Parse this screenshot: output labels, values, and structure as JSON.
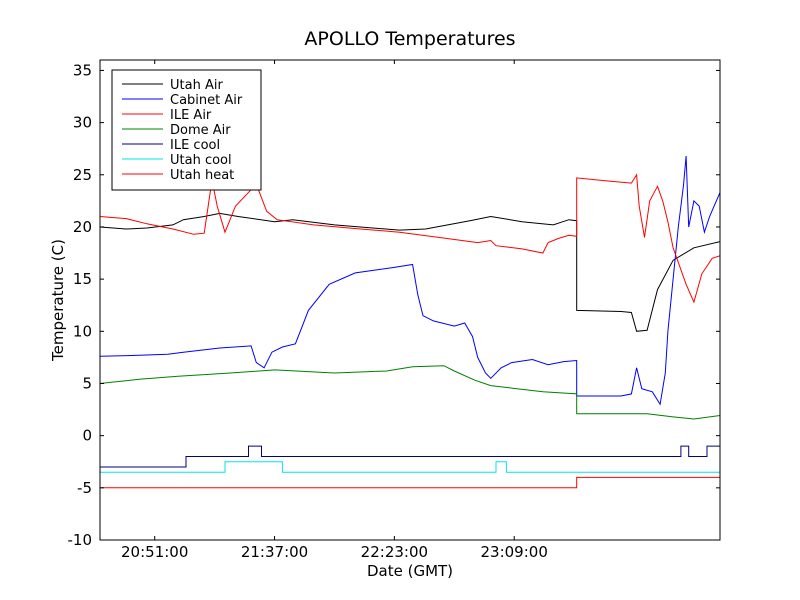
{
  "chart_data": {
    "type": "line",
    "title": "APOLLO Temperatures",
    "xlabel": "Date (GMT)",
    "ylabel": "Temperature (C)",
    "ylim": [
      -10,
      36
    ],
    "xlim_minutes": [
      1230,
      1468
    ],
    "x_ticks": [
      {
        "label": "20:51:00",
        "minute": 1251
      },
      {
        "label": "21:37:00",
        "minute": 1297
      },
      {
        "label": "22:23:00",
        "minute": 1343
      },
      {
        "label": "23:09:00",
        "minute": 1389
      }
    ],
    "y_ticks": [
      -10,
      -5,
      0,
      5,
      10,
      15,
      20,
      25,
      30,
      35
    ],
    "legend_location": "upper-left",
    "series": [
      {
        "name": "Utah Air",
        "color": "#000000",
        "points": [
          [
            1230,
            20.0
          ],
          [
            1240,
            19.8
          ],
          [
            1248,
            19.9
          ],
          [
            1258,
            20.2
          ],
          [
            1262,
            20.7
          ],
          [
            1270,
            21.0
          ],
          [
            1276,
            21.3
          ],
          [
            1283,
            21.0
          ],
          [
            1297,
            20.5
          ],
          [
            1304,
            20.7
          ],
          [
            1320,
            20.2
          ],
          [
            1345,
            19.7
          ],
          [
            1355,
            19.8
          ],
          [
            1372,
            20.6
          ],
          [
            1380,
            21.0
          ],
          [
            1392,
            20.5
          ],
          [
            1404,
            20.2
          ],
          [
            1410,
            20.7
          ],
          [
            1413,
            20.6
          ],
          [
            1413,
            12.0
          ],
          [
            1430,
            11.9
          ],
          [
            1434,
            11.8
          ],
          [
            1436,
            10.0
          ],
          [
            1440,
            10.1
          ],
          [
            1444,
            14.0
          ],
          [
            1450,
            16.8
          ],
          [
            1458,
            18.0
          ],
          [
            1468,
            18.6
          ]
        ]
      },
      {
        "name": "Cabinet Air",
        "color": "#0000ff",
        "points": [
          [
            1230,
            7.6
          ],
          [
            1245,
            7.7
          ],
          [
            1256,
            7.8
          ],
          [
            1262,
            8.0
          ],
          [
            1276,
            8.4
          ],
          [
            1288,
            8.6
          ],
          [
            1290,
            7.0
          ],
          [
            1293,
            6.5
          ],
          [
            1296,
            8.0
          ],
          [
            1300,
            8.5
          ],
          [
            1305,
            8.8
          ],
          [
            1310,
            12.0
          ],
          [
            1318,
            14.5
          ],
          [
            1328,
            15.6
          ],
          [
            1342,
            16.1
          ],
          [
            1350,
            16.4
          ],
          [
            1352,
            13.5
          ],
          [
            1354,
            11.5
          ],
          [
            1358,
            11.0
          ],
          [
            1366,
            10.5
          ],
          [
            1370,
            10.8
          ],
          [
            1373,
            9.5
          ],
          [
            1375,
            7.5
          ],
          [
            1378,
            6.0
          ],
          [
            1380,
            5.5
          ],
          [
            1384,
            6.5
          ],
          [
            1388,
            7.0
          ],
          [
            1396,
            7.3
          ],
          [
            1402,
            6.8
          ],
          [
            1408,
            7.1
          ],
          [
            1413,
            7.2
          ],
          [
            1413,
            3.8
          ],
          [
            1420,
            3.8
          ],
          [
            1430,
            3.8
          ],
          [
            1434,
            4.0
          ],
          [
            1436,
            6.5
          ],
          [
            1438,
            4.5
          ],
          [
            1442,
            4.2
          ],
          [
            1445,
            3.0
          ],
          [
            1447,
            6.0
          ],
          [
            1448,
            10.0
          ],
          [
            1450,
            15.0
          ],
          [
            1452,
            20.0
          ],
          [
            1454,
            24.0
          ],
          [
            1455,
            26.8
          ],
          [
            1456,
            20.0
          ],
          [
            1458,
            22.5
          ],
          [
            1460,
            22.0
          ],
          [
            1462,
            19.5
          ],
          [
            1464,
            21.0
          ],
          [
            1468,
            23.3
          ],
          [
            1470,
            21.5
          ]
        ]
      },
      {
        "name": "ILE Air",
        "color": "#ff0000",
        "points": [
          [
            1230,
            21.0
          ],
          [
            1240,
            20.8
          ],
          [
            1248,
            20.3
          ],
          [
            1258,
            19.8
          ],
          [
            1266,
            19.3
          ],
          [
            1270,
            19.4
          ],
          [
            1273,
            24.5
          ],
          [
            1275,
            22.0
          ],
          [
            1278,
            19.5
          ],
          [
            1282,
            22.0
          ],
          [
            1290,
            24.1
          ],
          [
            1294,
            21.5
          ],
          [
            1298,
            20.7
          ],
          [
            1312,
            20.2
          ],
          [
            1330,
            19.8
          ],
          [
            1345,
            19.5
          ],
          [
            1360,
            19.0
          ],
          [
            1375,
            18.5
          ],
          [
            1380,
            18.7
          ],
          [
            1382,
            18.2
          ],
          [
            1392,
            17.9
          ],
          [
            1400,
            17.5
          ],
          [
            1402,
            18.5
          ],
          [
            1406,
            18.9
          ],
          [
            1410,
            19.2
          ],
          [
            1413,
            19.1
          ],
          [
            1413,
            24.7
          ],
          [
            1425,
            24.4
          ],
          [
            1434,
            24.2
          ],
          [
            1436,
            25.0
          ],
          [
            1437,
            22.0
          ],
          [
            1439,
            19.0
          ],
          [
            1441,
            22.5
          ],
          [
            1444,
            23.9
          ],
          [
            1446,
            22.5
          ],
          [
            1448,
            20.5
          ],
          [
            1450,
            18.0
          ],
          [
            1455,
            14.5
          ],
          [
            1458,
            12.8
          ],
          [
            1461,
            15.5
          ],
          [
            1465,
            17.0
          ],
          [
            1470,
            17.4
          ]
        ]
      },
      {
        "name": "Dome Air",
        "color": "#008000",
        "points": [
          [
            1230,
            5.0
          ],
          [
            1245,
            5.4
          ],
          [
            1260,
            5.7
          ],
          [
            1280,
            6.0
          ],
          [
            1297,
            6.3
          ],
          [
            1320,
            6.0
          ],
          [
            1340,
            6.2
          ],
          [
            1350,
            6.6
          ],
          [
            1362,
            6.7
          ],
          [
            1366,
            6.2
          ],
          [
            1374,
            5.3
          ],
          [
            1380,
            4.8
          ],
          [
            1390,
            4.5
          ],
          [
            1400,
            4.2
          ],
          [
            1413,
            4.0
          ],
          [
            1413,
            2.1
          ],
          [
            1425,
            2.1
          ],
          [
            1440,
            2.1
          ],
          [
            1450,
            1.8
          ],
          [
            1458,
            1.6
          ],
          [
            1470,
            2.0
          ]
        ]
      },
      {
        "name": "ILE cool",
        "color": "#000080",
        "points": [
          [
            1230,
            -3.0
          ],
          [
            1263,
            -3.0
          ],
          [
            1263,
            -2.0
          ],
          [
            1287,
            -2.0
          ],
          [
            1287,
            -1.0
          ],
          [
            1292,
            -1.0
          ],
          [
            1292,
            -2.0
          ],
          [
            1453,
            -2.0
          ],
          [
            1453,
            -1.0
          ],
          [
            1456,
            -1.0
          ],
          [
            1456,
            -2.0
          ],
          [
            1463,
            -2.0
          ],
          [
            1463,
            -1.0
          ],
          [
            1470,
            -1.0
          ],
          [
            1470,
            -2.0
          ],
          [
            1490,
            -2.0
          ]
        ]
      },
      {
        "name": "Utah cool",
        "color": "#00e5e5",
        "points": [
          [
            1230,
            -3.5
          ],
          [
            1278,
            -3.5
          ],
          [
            1278,
            -2.5
          ],
          [
            1300,
            -2.5
          ],
          [
            1300,
            -3.5
          ],
          [
            1382,
            -3.5
          ],
          [
            1382,
            -2.5
          ],
          [
            1386,
            -2.5
          ],
          [
            1386,
            -3.5
          ],
          [
            1490,
            -3.5
          ]
        ]
      },
      {
        "name": "Utah heat",
        "color": "#ff0000",
        "points": [
          [
            1230,
            -5.0
          ],
          [
            1413,
            -5.0
          ],
          [
            1413,
            -4.0
          ],
          [
            1490,
            -4.0
          ]
        ]
      }
    ]
  }
}
